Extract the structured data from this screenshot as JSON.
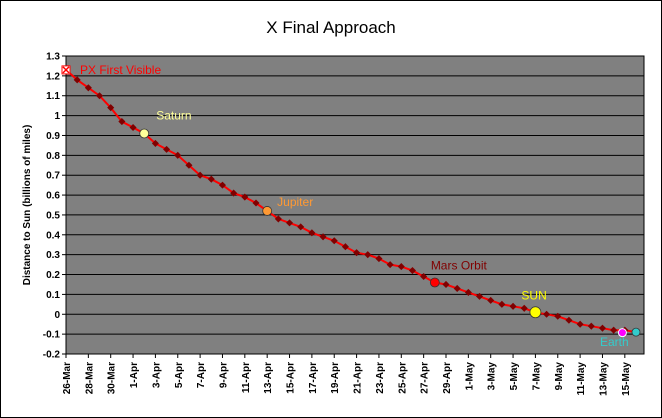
{
  "chart_data": {
    "type": "line",
    "title": "X Final Approach",
    "xlabel": "",
    "ylabel": "Distance to Sun (billions of miles)",
    "ylim": [
      -0.2,
      1.3
    ],
    "yticks": [
      "-0.2",
      "-0.1",
      "0",
      "0.1",
      "0.2",
      "0.3",
      "0.4",
      "0.5",
      "0.6",
      "0.7",
      "0.8",
      "0.9",
      "1",
      "1.1",
      "1.2",
      "1.3"
    ],
    "categories": [
      "26-Mar",
      "28-Mar",
      "30-Mar",
      "1-Apr",
      "3-Apr",
      "5-Apr",
      "7-Apr",
      "9-Apr",
      "11-Apr",
      "13-Apr",
      "15-Apr",
      "17-Apr",
      "19-Apr",
      "21-Apr",
      "23-Apr",
      "25-Apr",
      "27-Apr",
      "29-Apr",
      "1-May",
      "3-May",
      "5-May",
      "7-May",
      "9-May",
      "11-May",
      "13-May",
      "15-May"
    ],
    "grid": true,
    "plot_background": "#808080",
    "series_color": "#ff0000",
    "marker_color": "#800000",
    "series": [
      {
        "x": [
          0,
          1,
          2,
          3,
          4,
          5,
          6,
          7,
          8,
          9,
          10,
          11,
          12,
          13,
          14,
          15,
          16,
          17,
          18,
          19,
          20,
          21,
          22,
          23,
          24,
          25,
          26,
          27,
          28,
          29,
          30,
          31,
          32,
          33,
          34,
          35,
          36,
          37,
          38,
          39,
          40,
          41,
          42,
          43,
          44,
          45,
          46,
          47,
          48,
          49,
          50,
          51
        ],
        "values": [
          1.23,
          1.18,
          1.14,
          1.1,
          1.04,
          0.97,
          0.94,
          0.91,
          0.86,
          0.83,
          0.8,
          0.75,
          0.7,
          0.68,
          0.65,
          0.61,
          0.59,
          0.56,
          0.52,
          0.48,
          0.46,
          0.44,
          0.41,
          0.39,
          0.37,
          0.34,
          0.31,
          0.3,
          0.28,
          0.25,
          0.24,
          0.22,
          0.19,
          0.16,
          0.15,
          0.13,
          0.11,
          0.09,
          0.07,
          0.05,
          0.04,
          0.03,
          0.01,
          0.0,
          -0.01,
          -0.03,
          -0.05,
          -0.06,
          -0.07,
          -0.08,
          -0.08,
          -0.09
        ]
      }
    ],
    "annotations": [
      {
        "text": "PX First Visible",
        "x": 0,
        "y": 1.23,
        "color": "#ff0000",
        "marker": "x-box",
        "marker_color": "#ff0000"
      },
      {
        "text": "Saturn",
        "x": 7,
        "y": 0.91,
        "color": "#ffff99",
        "marker": "circle",
        "marker_color": "#ffff99"
      },
      {
        "text": "Jupiter",
        "x": 18,
        "y": 0.52,
        "color": "#ff9933",
        "marker": "circle",
        "marker_color": "#ff9933"
      },
      {
        "text": "Mars Orbit",
        "x": 33,
        "y": 0.16,
        "color": "#800000",
        "marker": "circle",
        "marker_color": "#ff0000"
      },
      {
        "text": "SUN",
        "x": 42,
        "y": 0.01,
        "color": "#ffff00",
        "marker": "circle",
        "marker_color": "#ffff00"
      },
      {
        "text": "Earth",
        "x": 51,
        "y": -0.09,
        "color": "#33cccc",
        "marker": "circle",
        "marker_color": "#33cccc"
      }
    ],
    "endpoint_marker_color": "#ff00ff"
  }
}
